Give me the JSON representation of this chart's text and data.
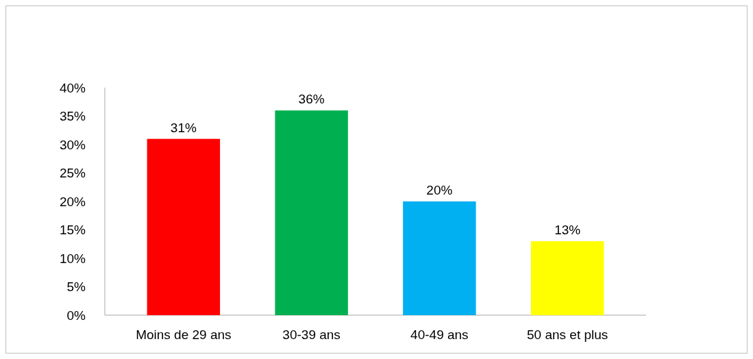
{
  "chart_data": {
    "type": "bar",
    "categories": [
      "Moins de 29 ans",
      "30-39 ans",
      "40-49 ans",
      "50 ans et plus"
    ],
    "values": [
      31,
      36,
      20,
      13
    ],
    "colors": [
      "#ff0000",
      "#00b050",
      "#00b0f0",
      "#ffff00"
    ],
    "ylim": [
      0,
      40
    ],
    "yticks": [
      {
        "value": 0,
        "label": "0%"
      },
      {
        "value": 5,
        "label": "5%"
      },
      {
        "value": 10,
        "label": "10%"
      },
      {
        "value": 15,
        "label": "15%"
      },
      {
        "value": 20,
        "label": "20%"
      },
      {
        "value": 25,
        "label": "25%"
      },
      {
        "value": 30,
        "label": "30%"
      },
      {
        "value": 35,
        "label": "35%"
      },
      {
        "value": 40,
        "label": "40%"
      }
    ],
    "value_labels": [
      "31%",
      "36%",
      "20%",
      "13%"
    ],
    "grid": false
  }
}
